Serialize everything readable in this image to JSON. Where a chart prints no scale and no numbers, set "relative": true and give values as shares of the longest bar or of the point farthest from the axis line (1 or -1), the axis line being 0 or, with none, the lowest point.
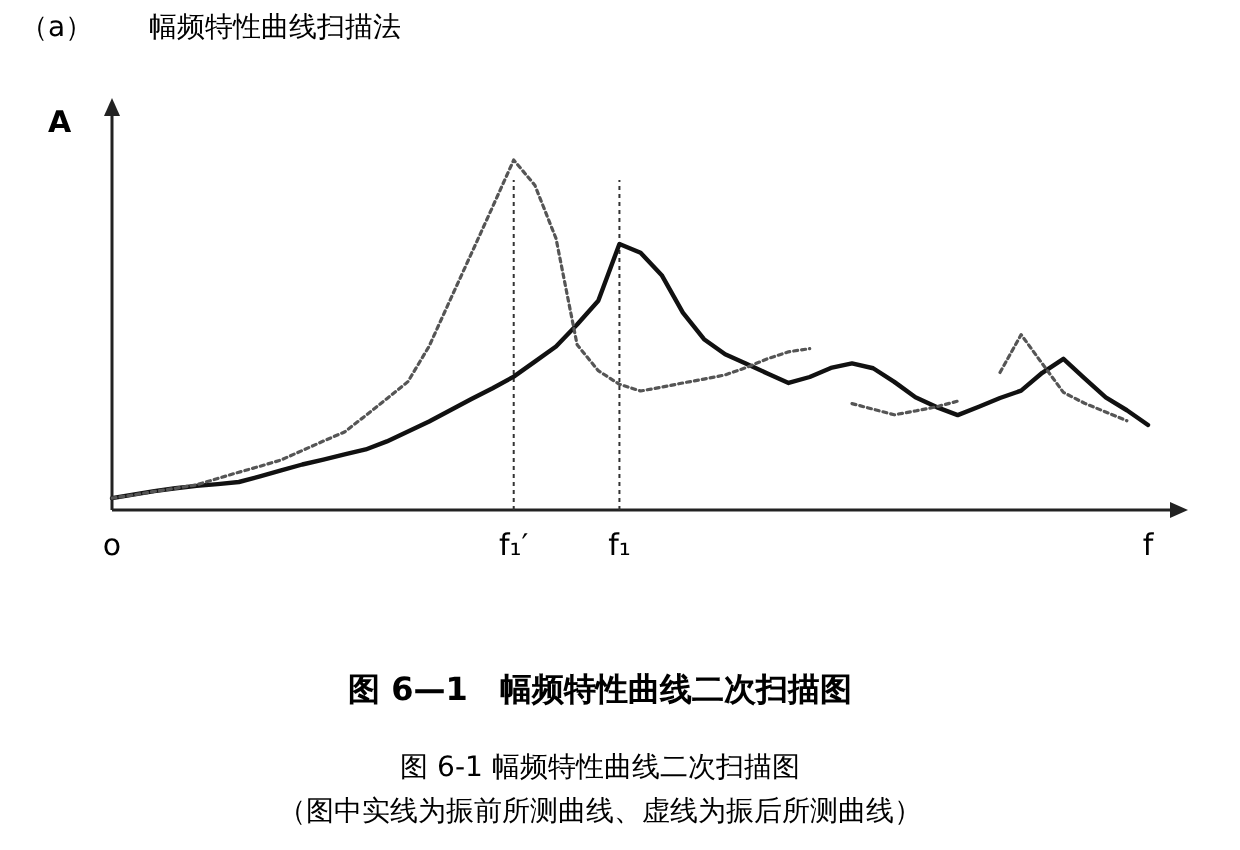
{
  "chart_data": {
    "type": "line",
    "title": "（a）　　幅频特性曲线扫描法",
    "ylabel": "A",
    "relative": true,
    "categories": [
      "o",
      null,
      null,
      null,
      null,
      null,
      null,
      null,
      null,
      null,
      null,
      null,
      null,
      null,
      null,
      null,
      null,
      null,
      null,
      "f₁′",
      null,
      null,
      null,
      null,
      "f₁",
      null,
      null,
      null,
      null,
      null,
      null,
      null,
      null,
      null,
      null,
      null,
      null,
      null,
      null,
      null,
      null,
      null,
      null,
      null,
      null,
      null,
      null,
      null,
      null,
      "f"
    ],
    "ref_lines": [
      {
        "axis": "x",
        "value": "f₁′",
        "label": null,
        "line_style": "dotted",
        "color": "#333333"
      },
      {
        "axis": "x",
        "value": "f₁",
        "label": null,
        "line_style": "dotted",
        "color": "#333333"
      }
    ],
    "series": [
      {
        "color": "#111111",
        "line_style": "solid",
        "values": [
          0.034,
          0.044,
          0.054,
          0.062,
          0.069,
          0.074,
          0.08,
          0.096,
          0.113,
          0.13,
          0.144,
          0.159,
          0.173,
          0.196,
          0.224,
          0.253,
          0.285,
          0.317,
          0.348,
          0.381,
          0.424,
          0.467,
          0.53,
          0.598,
          0.76,
          0.735,
          0.671,
          0.564,
          0.488,
          0.445,
          0.418,
          0.39,
          0.363,
          0.38,
          0.406,
          0.419,
          0.405,
          0.366,
          0.322,
          0.294,
          0.271,
          0.295,
          0.32,
          0.341,
          0.392,
          0.432,
          0.376,
          0.322,
          0.285,
          0.243
        ]
      },
      {
        "color": "#555555",
        "line_style": "dotted",
        "values": [
          0.034,
          0.043,
          0.053,
          0.062,
          0.072,
          0.09,
          0.108,
          0.125,
          0.143,
          0.17,
          0.197,
          0.223,
          0.27,
          0.318,
          0.367,
          0.468,
          0.601,
          0.733,
          0.866,
          1.0,
          0.928,
          0.776,
          0.472,
          0.398,
          0.359,
          0.34,
          0.351,
          0.363,
          0.374,
          0.386,
          0.407,
          0.432,
          0.452,
          0.461,
          null,
          0.304,
          0.288,
          0.272,
          0.283,
          0.295,
          0.311,
          null,
          0.393,
          0.501,
          0.418,
          0.336,
          0.305,
          0.28,
          0.255,
          null
        ]
      }
    ],
    "annotations": [
      "图 6—1　幅频特性曲线二次扫描图",
      "图 6-1 幅频特性曲线二次扫描图",
      "（图中实线为振前所测曲线、虚线为振后所测曲线）"
    ]
  }
}
